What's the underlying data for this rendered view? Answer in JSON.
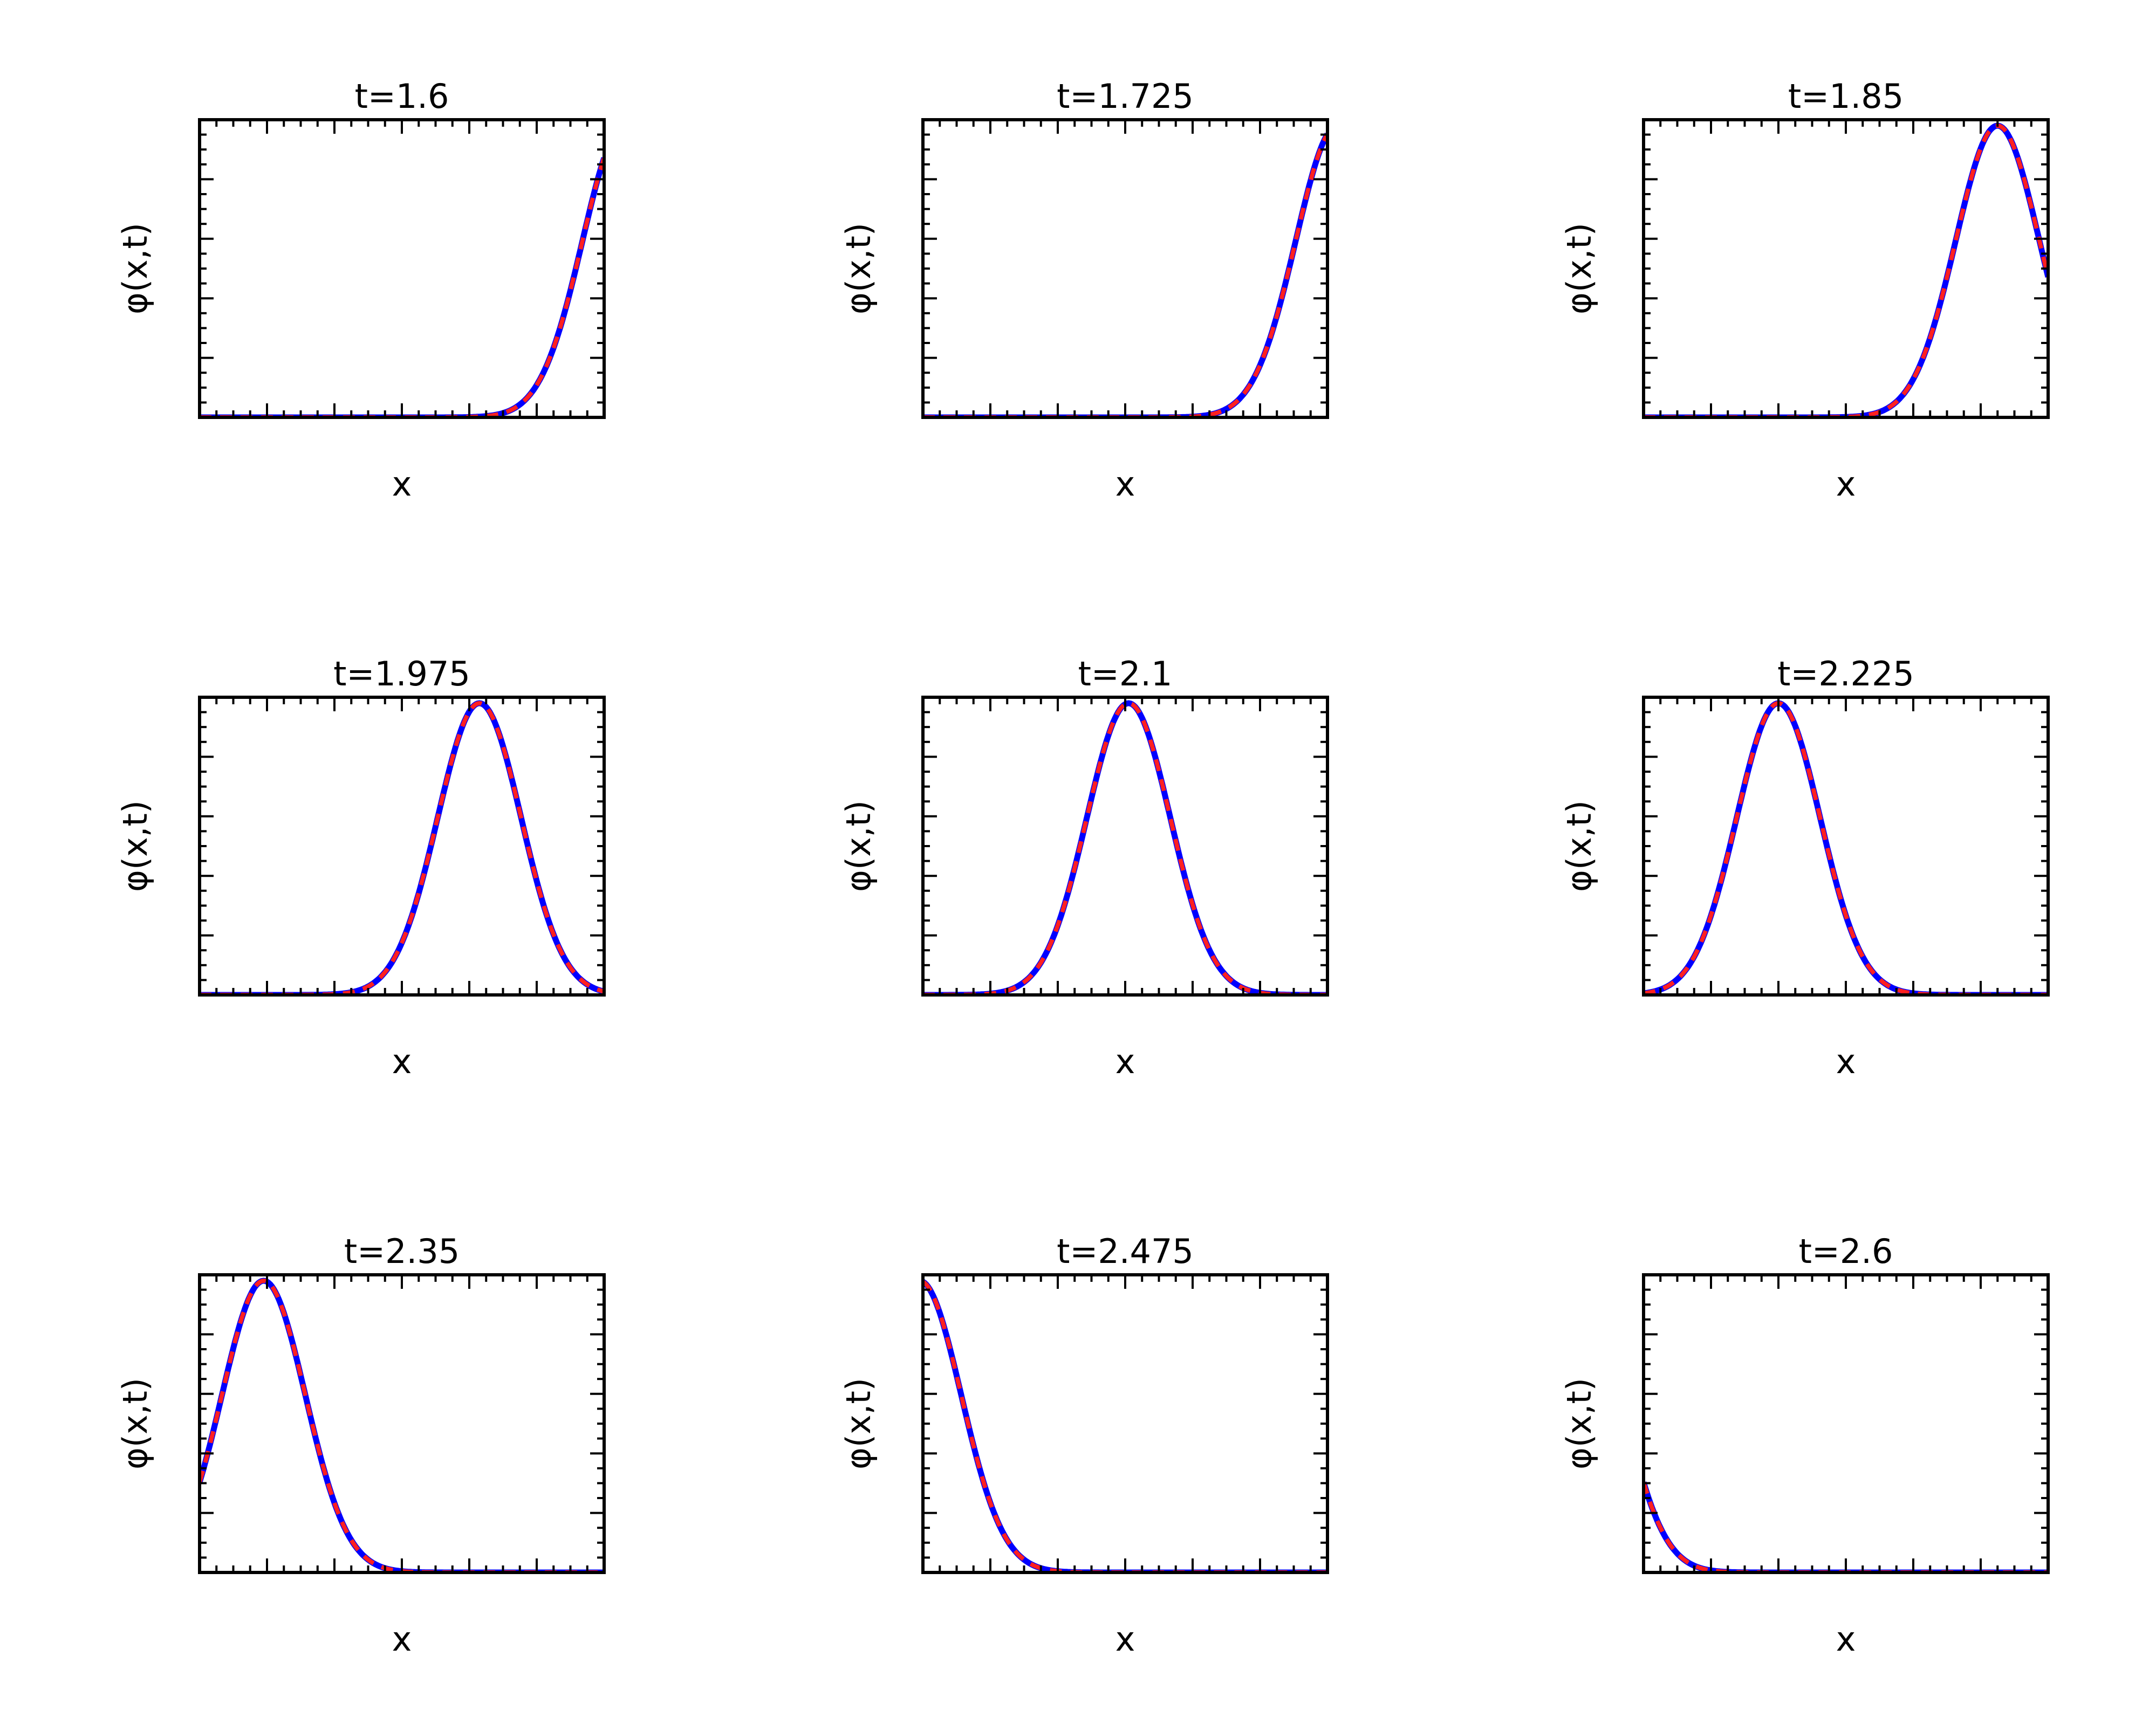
{
  "colors": {
    "exact": "#0000ff",
    "approx": "#ff2020",
    "axes": "#000000"
  },
  "chart_data": [
    {
      "type": "line",
      "title": "t=1.6",
      "xlabel": "x",
      "ylabel": "φ(x,t)",
      "xlim": [
        0,
        6
      ],
      "ylim": [
        0,
        1
      ],
      "series": [
        {
          "name": "solid",
          "style": "solid"
        },
        {
          "name": "dashed",
          "style": "dashed"
        }
      ],
      "peak": {
        "center": 6.3,
        "sigma": 0.62,
        "amplitude": 0.98
      }
    },
    {
      "type": "line",
      "title": "t=1.725",
      "xlabel": "x",
      "ylabel": "φ(x,t)",
      "xlim": [
        0,
        6
      ],
      "ylim": [
        0,
        1
      ],
      "series": [
        {
          "name": "solid",
          "style": "solid"
        },
        {
          "name": "dashed",
          "style": "dashed"
        }
      ],
      "peak": {
        "center": 6.15,
        "sigma": 0.62,
        "amplitude": 0.98
      }
    },
    {
      "type": "line",
      "title": "t=1.85",
      "xlabel": "x",
      "ylabel": "φ(x,t)",
      "xlim": [
        0,
        6
      ],
      "ylim": [
        0,
        1
      ],
      "series": [
        {
          "name": "solid",
          "style": "solid"
        },
        {
          "name": "dashed",
          "style": "dashed"
        }
      ],
      "peak": {
        "center": 5.25,
        "sigma": 0.62,
        "amplitude": 0.98
      }
    },
    {
      "type": "line",
      "title": "t=1.975",
      "xlabel": "x",
      "ylabel": "φ(x,t)",
      "xlim": [
        0,
        6
      ],
      "ylim": [
        0,
        1
      ],
      "series": [
        {
          "name": "solid",
          "style": "solid"
        },
        {
          "name": "dashed",
          "style": "dashed"
        }
      ],
      "peak": {
        "center": 4.15,
        "sigma": 0.62,
        "amplitude": 0.98
      }
    },
    {
      "type": "line",
      "title": "t=2.1",
      "xlabel": "x",
      "ylabel": "φ(x,t)",
      "xlim": [
        0,
        6
      ],
      "ylim": [
        0,
        1
      ],
      "series": [
        {
          "name": "solid",
          "style": "solid"
        },
        {
          "name": "dashed",
          "style": "dashed"
        }
      ],
      "peak": {
        "center": 3.05,
        "sigma": 0.62,
        "amplitude": 0.98
      }
    },
    {
      "type": "line",
      "title": "t=2.225",
      "xlabel": "x",
      "ylabel": "φ(x,t)",
      "xlim": [
        0,
        6
      ],
      "ylim": [
        0,
        1
      ],
      "series": [
        {
          "name": "solid",
          "style": "solid"
        },
        {
          "name": "dashed",
          "style": "dashed"
        }
      ],
      "peak": {
        "center": 2.0,
        "sigma": 0.62,
        "amplitude": 0.98
      }
    },
    {
      "type": "line",
      "title": "t=2.35",
      "xlabel": "x",
      "ylabel": "φ(x,t)",
      "xlim": [
        0,
        6
      ],
      "ylim": [
        0,
        1
      ],
      "series": [
        {
          "name": "solid",
          "style": "solid"
        },
        {
          "name": "dashed",
          "style": "dashed"
        }
      ],
      "peak": {
        "center": 0.95,
        "sigma": 0.62,
        "amplitude": 0.98
      }
    },
    {
      "type": "line",
      "title": "t=2.475",
      "xlabel": "x",
      "ylabel": "φ(x,t)",
      "xlim": [
        0,
        6
      ],
      "ylim": [
        0,
        1
      ],
      "series": [
        {
          "name": "solid",
          "style": "solid"
        },
        {
          "name": "dashed",
          "style": "dashed"
        }
      ],
      "peak": {
        "center": -0.05,
        "sigma": 0.62,
        "amplitude": 0.98
      }
    },
    {
      "type": "line",
      "title": "t=2.6",
      "xlabel": "x",
      "ylabel": "φ(x,t)",
      "xlim": [
        0,
        6
      ],
      "ylim": [
        0,
        1
      ],
      "series": [
        {
          "name": "solid",
          "style": "solid"
        },
        {
          "name": "dashed",
          "style": "dashed"
        }
      ],
      "peak": {
        "center": -0.95,
        "sigma": 0.62,
        "amplitude": 0.98
      }
    }
  ]
}
